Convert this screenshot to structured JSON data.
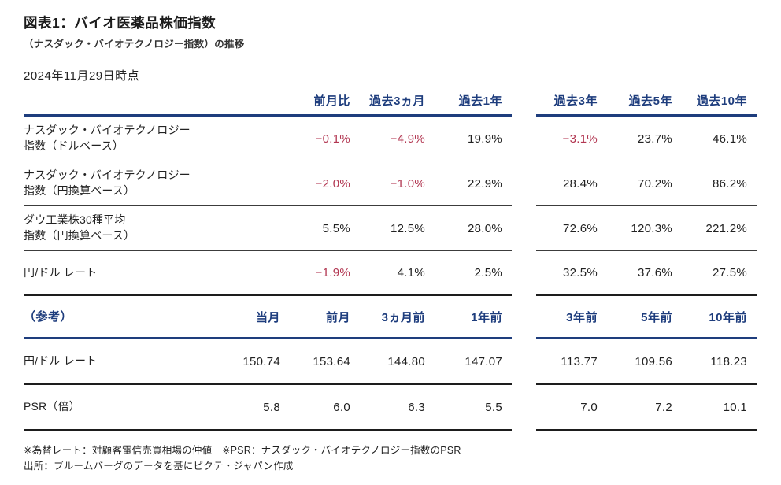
{
  "page": {
    "title": "図表1：バイオ医薬品株価指数",
    "subtitle": "（ナスダック・バイオテクノロジー指数）の推移",
    "as_of": "2024年11月29日時点"
  },
  "colors": {
    "accent_blue": "#1e3d7d",
    "negative_red": "#b23651"
  },
  "table": {
    "header1": {
      "left": [
        "前月比",
        "過去3ヵ月",
        "過去1年"
      ],
      "right": [
        "過去3年",
        "過去5年",
        "過去10年"
      ]
    },
    "rows1": [
      {
        "label_line1": "ナスダック・バイオテクノロジー",
        "label_line2": "指数（ドルベース）",
        "left": [
          "−0.1%",
          "−4.9%",
          "19.9%"
        ],
        "right": [
          "−3.1%",
          "23.7%",
          "46.1%"
        ]
      },
      {
        "label_line1": "ナスダック・バイオテクノロジー",
        "label_line2": "指数（円換算ベース）",
        "left": [
          "−2.0%",
          "−1.0%",
          "22.9%"
        ],
        "right": [
          "28.4%",
          "70.2%",
          "86.2%"
        ]
      },
      {
        "label_line1": "ダウ工業株30種平均",
        "label_line2": "指数（円換算ベース）",
        "left": [
          "5.5%",
          "12.5%",
          "28.0%"
        ],
        "right": [
          "72.6%",
          "120.3%",
          "221.2%"
        ]
      },
      {
        "label": "円/ドル レート",
        "left": [
          "−1.9%",
          "4.1%",
          "2.5%"
        ],
        "right": [
          "32.5%",
          "37.6%",
          "27.5%"
        ]
      }
    ],
    "header2": {
      "label": "（参考）",
      "left": [
        "当月",
        "前月",
        "3ヵ月前",
        "1年前"
      ],
      "right": [
        "3年前",
        "5年前",
        "10年前"
      ]
    },
    "rows2": [
      {
        "label": "円/ドル レート",
        "left": [
          "150.74",
          "153.64",
          "144.80",
          "147.07"
        ],
        "right": [
          "113.77",
          "109.56",
          "118.23"
        ]
      },
      {
        "label": "PSR（倍）",
        "left": [
          "5.8",
          "6.0",
          "6.3",
          "5.5"
        ],
        "right": [
          "7.0",
          "7.2",
          "10.1"
        ]
      }
    ]
  },
  "footnotes": [
    "※為替レート：対顧客電信売買相場の仲値　※PSR：ナスダック・バイオテクノロジー指数のPSR",
    "出所：ブルームバーグのデータを基にピクテ・ジャパン作成"
  ],
  "chart_data": {
    "type": "table",
    "title": "図表1：バイオ医薬品株価指数（ナスダック・バイオテクノロジー指数）の推移",
    "as_of": "2024年11月29日時点",
    "sections": [
      {
        "columns": [
          "前月比",
          "過去3ヵ月",
          "過去1年",
          "過去3年",
          "過去5年",
          "過去10年"
        ],
        "rows": [
          {
            "label": "ナスダック・バイオテクノロジー指数（ドルベース）",
            "values_pct": [
              -0.1,
              -4.9,
              19.9,
              -3.1,
              23.7,
              46.1
            ]
          },
          {
            "label": "ナスダック・バイオテクノロジー指数（円換算ベース）",
            "values_pct": [
              -2.0,
              -1.0,
              22.9,
              28.4,
              70.2,
              86.2
            ]
          },
          {
            "label": "ダウ工業株30種平均指数（円換算ベース）",
            "values_pct": [
              5.5,
              12.5,
              28.0,
              72.6,
              120.3,
              221.2
            ]
          },
          {
            "label": "円/ドル レート",
            "values_pct": [
              -1.9,
              4.1,
              2.5,
              32.5,
              37.6,
              27.5
            ]
          }
        ]
      },
      {
        "name": "（参考）",
        "columns": [
          "当月",
          "前月",
          "3ヵ月前",
          "1年前",
          "3年前",
          "5年前",
          "10年前"
        ],
        "rows": [
          {
            "label": "円/ドル レート",
            "values": [
              150.74,
              153.64,
              144.8,
              147.07,
              113.77,
              109.56,
              118.23
            ]
          },
          {
            "label": "PSR（倍）",
            "values": [
              5.8,
              6.0,
              6.3,
              5.5,
              7.0,
              7.2,
              10.1
            ]
          }
        ]
      }
    ],
    "negative_values_colored": "#b23651",
    "footnotes": [
      "※為替レート：対顧客電信売買相場の仲値　※PSR：ナスダック・バイオテクノロジー指数のPSR",
      "出所：ブルームバーグのデータを基にピクテ・ジャパン作成"
    ]
  }
}
